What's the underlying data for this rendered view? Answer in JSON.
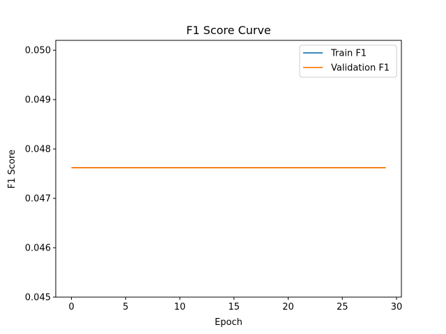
{
  "chart_data": {
    "type": "line",
    "title": "F1 Score Curve",
    "xlabel": "Epoch",
    "ylabel": "F1 Score",
    "xlim": [
      -1.45,
      30.45
    ],
    "ylim": [
      0.045,
      0.0502
    ],
    "xticks": [
      0,
      5,
      10,
      15,
      20,
      25,
      30
    ],
    "yticks": [
      0.045,
      0.046,
      0.047,
      0.048,
      0.049,
      0.05
    ],
    "xtick_labels": [
      "0",
      "5",
      "10",
      "15",
      "20",
      "25",
      "30"
    ],
    "ytick_labels": [
      "0.045",
      "0.046",
      "0.047",
      "0.048",
      "0.049",
      "0.050"
    ],
    "grid": false,
    "legend_position": "top-right",
    "x": [
      0,
      1,
      2,
      3,
      4,
      5,
      6,
      7,
      8,
      9,
      10,
      11,
      12,
      13,
      14,
      15,
      16,
      17,
      18,
      19,
      20,
      21,
      22,
      23,
      24,
      25,
      26,
      27,
      28,
      29
    ],
    "series": [
      {
        "name": "Train F1",
        "color": "#1f77b4",
        "values": [
          0.04762,
          0.04762,
          0.04762,
          0.04762,
          0.04762,
          0.04762,
          0.04762,
          0.04762,
          0.04762,
          0.04762,
          0.04762,
          0.04762,
          0.04762,
          0.04762,
          0.04762,
          0.04762,
          0.04762,
          0.04762,
          0.04762,
          0.04762,
          0.04762,
          0.04762,
          0.04762,
          0.04762,
          0.04762,
          0.04762,
          0.04762,
          0.04762,
          0.04762,
          0.04762
        ]
      },
      {
        "name": "Validation F1",
        "color": "#ff7f0e",
        "values": [
          0.04762,
          0.04762,
          0.04762,
          0.04762,
          0.04762,
          0.04762,
          0.04762,
          0.04762,
          0.04762,
          0.04762,
          0.04762,
          0.04762,
          0.04762,
          0.04762,
          0.04762,
          0.04762,
          0.04762,
          0.04762,
          0.04762,
          0.04762,
          0.04762,
          0.04762,
          0.04762,
          0.04762,
          0.04762,
          0.04762,
          0.04762,
          0.04762,
          0.04762,
          0.04762
        ]
      }
    ]
  }
}
